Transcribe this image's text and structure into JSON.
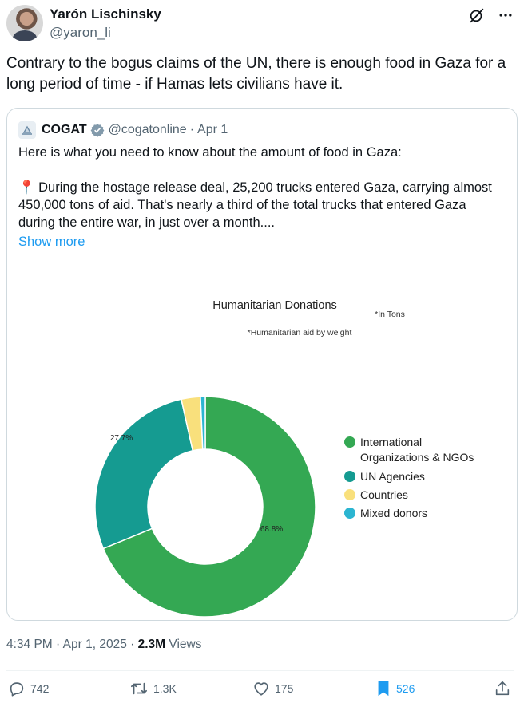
{
  "author": {
    "name": "Yarón Lischinsky",
    "handle": "@yaron_li"
  },
  "tweet": {
    "text": "Contrary to the bogus claims of the UN, there is enough food in Gaza for a long period of time - if Hamas lets civilians have it."
  },
  "quote": {
    "name": "COGAT",
    "handle": "@cogatonline",
    "separator": "·",
    "date": "Apr 1",
    "line1": "Here is what you need to know about the amount of food in Gaza:",
    "line2": "📍 During the hostage release deal, 25,200 trucks entered Gaza, carrying almost 450,000 tons of aid. That's nearly a third of the total trucks that entered Gaza during the entire war, in just over a month....",
    "show_more": "Show more"
  },
  "chart_data": {
    "type": "pie",
    "title": "Humanitarian Donations",
    "subtitle": "*Humanitarian aid by weight",
    "unit_note": "*In Tons",
    "series": [
      {
        "name": "International Organizations & NGOs",
        "value": 68.8,
        "color": "#34a853",
        "label": "68.8%"
      },
      {
        "name": "UN Agencies",
        "value": 27.7,
        "color": "#159b91",
        "label": "27.7%"
      },
      {
        "name": "Countries",
        "value": 2.8,
        "color": "#f9e07c",
        "label": ""
      },
      {
        "name": "Mixed donors",
        "value": 0.7,
        "color": "#2bb5d1",
        "label": ""
      }
    ],
    "legend_line1": "International",
    "legend_line2": "Organizations & NGOs",
    "legend": [
      "UN Agencies",
      "Countries",
      "Mixed donors"
    ],
    "legend_placement": "right"
  },
  "meta": {
    "time": "4:34 PM",
    "sep": "·",
    "date": "Apr 1, 2025",
    "views_count": "2.3M",
    "views_label": "Views"
  },
  "actions": {
    "replies": "742",
    "reposts": "1.3K",
    "likes": "175",
    "bookmarks": "526"
  },
  "colors": {
    "accent": "#1d9bf0",
    "muted": "#536471",
    "border": "#cfd9de"
  },
  "icons": [
    "grok-icon",
    "more-icon",
    "verified-icon",
    "reply-icon",
    "repost-icon",
    "like-icon",
    "bookmark-icon",
    "share-icon"
  ]
}
